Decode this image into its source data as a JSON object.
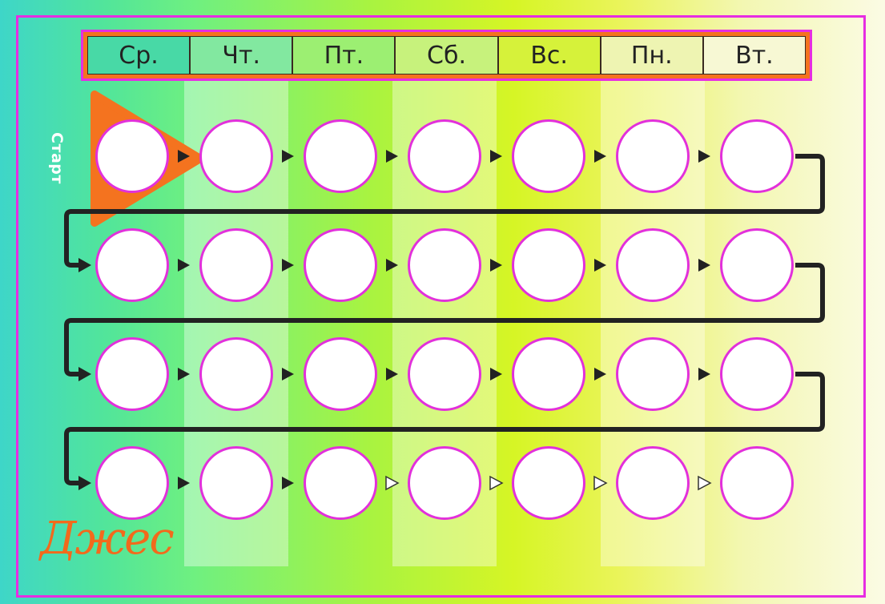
{
  "days": [
    "Ср.",
    "Чт.",
    "Пт.",
    "Сб.",
    "Вс.",
    "Пн.",
    "Вт."
  ],
  "start_label": "Старт",
  "name": "Джес",
  "grid": {
    "rows": 4,
    "cols": 7,
    "hollow_arrows_last_row_from_col": 3
  },
  "colors": {
    "accent_orange": "#f4731f",
    "circle_border": "#e230db",
    "frame": "#e62de2",
    "path": "#222222"
  }
}
